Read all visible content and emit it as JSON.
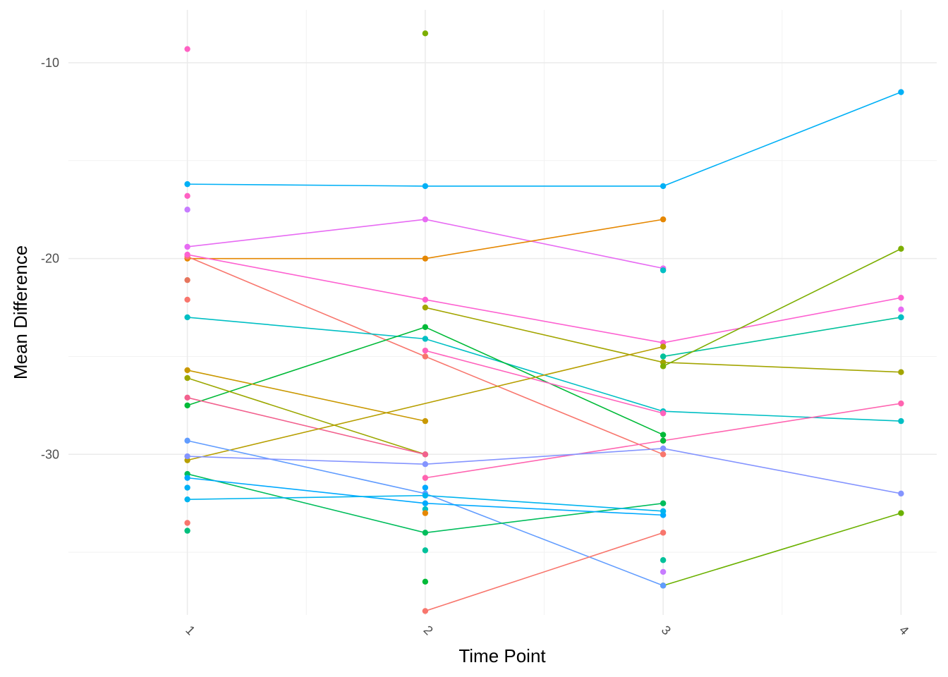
{
  "chart_data": {
    "type": "line",
    "title": "",
    "xlabel": "Time Point",
    "ylabel": "Mean Difference",
    "x": [
      1,
      2,
      3,
      4
    ],
    "xlim": [
      0.5,
      4.15
    ],
    "ylim": [
      -38.2,
      -7.3
    ],
    "yticks": [
      -10,
      -20,
      -30
    ],
    "grid": true,
    "legend": "none",
    "series": [
      {
        "color": "#00B0F6",
        "values": [
          -16.2,
          -16.3,
          -16.3,
          -11.5
        ]
      },
      {
        "color": "#E76BF3",
        "values": [
          -19.4,
          -18.0,
          -20.5,
          null
        ]
      },
      {
        "color": "#E58700",
        "values": [
          -20.0,
          -20.0,
          -18.0,
          null
        ]
      },
      {
        "color": "#F8766D",
        "values": [
          -19.9,
          -25.0,
          -30.0,
          null
        ]
      },
      {
        "color": "#FD61D1",
        "values": [
          -19.8,
          -22.1,
          -24.3,
          -22.0
        ]
      },
      {
        "color": "#00BFC4",
        "values": [
          -23.0,
          -24.1,
          -27.8,
          -28.3
        ]
      },
      {
        "color": "#00BA38",
        "values": [
          -27.5,
          -23.5,
          -29.0,
          null
        ]
      },
      {
        "color": "#A3A500",
        "values": [
          null,
          -22.5,
          -25.3,
          -25.8
        ]
      },
      {
        "color": "#FF62BC",
        "values": [
          null,
          -24.7,
          -27.9,
          null
        ]
      },
      {
        "color": "#6BB100",
        "values": [
          null,
          null,
          -36.7,
          -33.0
        ]
      },
      {
        "color": "#C99800",
        "values": [
          -25.7,
          -28.3,
          null,
          null
        ]
      },
      {
        "color": "#9CA700",
        "values": [
          -26.1,
          -30.0,
          null,
          null
        ]
      },
      {
        "color": "#F2618E",
        "values": [
          -27.1,
          -30.0,
          null,
          null
        ]
      },
      {
        "color": "#B79F00",
        "values": [
          -30.3,
          null,
          -24.5,
          null
        ]
      },
      {
        "color": "#00C19A",
        "values": [
          null,
          null,
          -25.0,
          -23.0
        ]
      },
      {
        "color": "#7CAE00",
        "values": [
          null,
          null,
          -25.5,
          -19.5
        ]
      },
      {
        "color": "#FF64B0",
        "values": [
          null,
          -31.2,
          -29.3,
          -27.4
        ]
      },
      {
        "color": "#619CFF",
        "values": [
          -29.3,
          -32.0,
          -36.7,
          null
        ]
      },
      {
        "color": "#8494FF",
        "values": [
          -30.1,
          -30.5,
          -29.7,
          -32.0
        ]
      },
      {
        "color": "#00BD5C",
        "values": [
          -31.0,
          -34.0,
          -32.5,
          null
        ]
      },
      {
        "color": "#00A9FF",
        "values": [
          -31.2,
          -32.5,
          -33.1,
          null
        ]
      },
      {
        "color": "#00B4EF",
        "values": [
          -32.3,
          -32.1,
          -32.9,
          null
        ]
      },
      {
        "color": "#F8766D",
        "values": [
          null,
          -38.0,
          -34.0,
          null
        ]
      }
    ],
    "extra_points": [
      {
        "color": "#FF61C3",
        "x": 1,
        "y": -9.3
      },
      {
        "color": "#FF61C3",
        "x": 1,
        "y": -16.8
      },
      {
        "color": "#C77CFF",
        "x": 1,
        "y": -17.5
      },
      {
        "color": "#E6755D",
        "x": 1,
        "y": -21.1
      },
      {
        "color": "#F8766D",
        "x": 1,
        "y": -22.1
      },
      {
        "color": "#00B0F6",
        "x": 1,
        "y": -31.7
      },
      {
        "color": "#F8766D",
        "x": 1,
        "y": -33.5
      },
      {
        "color": "#00BF7D",
        "x": 1,
        "y": -33.9
      },
      {
        "color": "#7CAE00",
        "x": 2,
        "y": -8.5
      },
      {
        "color": "#00A9FF",
        "x": 2,
        "y": -31.7
      },
      {
        "color": "#00BFC4",
        "x": 2,
        "y": -32.8
      },
      {
        "color": "#E58700",
        "x": 2,
        "y": -33.0
      },
      {
        "color": "#00C19A",
        "x": 2,
        "y": -34.9
      },
      {
        "color": "#00BA38",
        "x": 2,
        "y": -36.5
      },
      {
        "color": "#00BFC4",
        "x": 3,
        "y": -20.6
      },
      {
        "color": "#00BA38",
        "x": 3,
        "y": -29.3
      },
      {
        "color": "#00C19A",
        "x": 3,
        "y": -35.4
      },
      {
        "color": "#C77CFF",
        "x": 3,
        "y": -36.0
      },
      {
        "color": "#E76BF3",
        "x": 4,
        "y": -22.6
      },
      {
        "color": "#00BFC4",
        "x": 4,
        "y": -23.0
      }
    ]
  }
}
